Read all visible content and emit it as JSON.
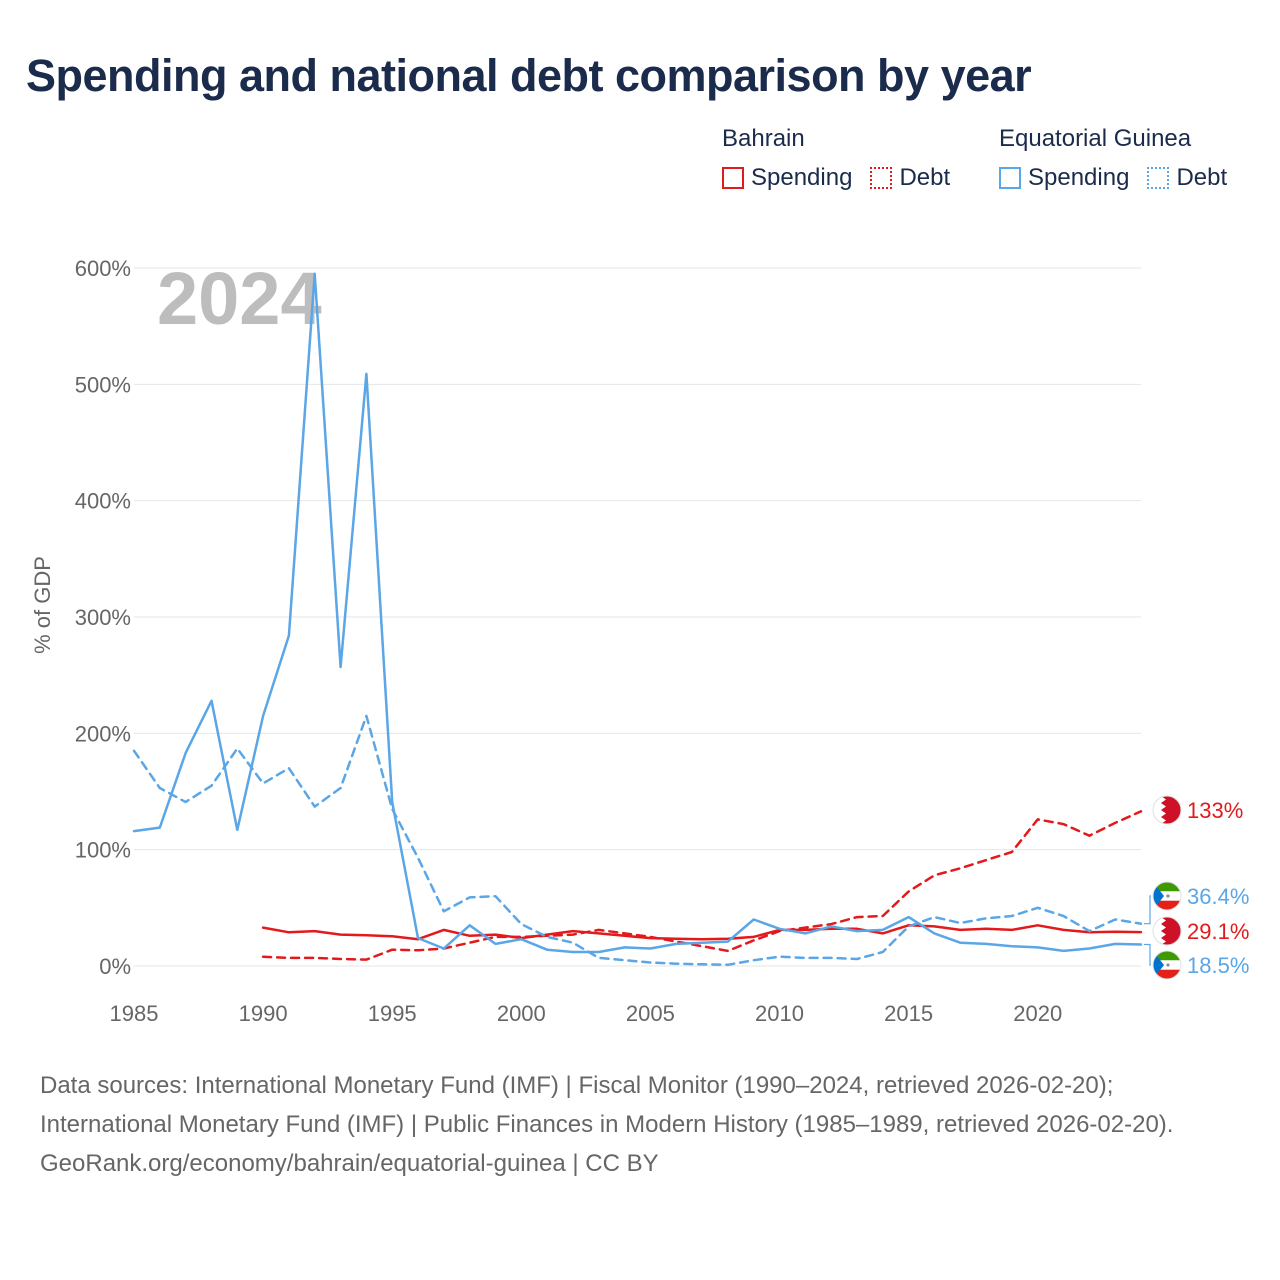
{
  "title": "Spending and national debt comparison by year",
  "year_overlay": "2024",
  "legend": {
    "groups": [
      {
        "name": "Bahrain",
        "color": "#e31a1c",
        "items": [
          {
            "label": "Spending",
            "style": "solid"
          },
          {
            "label": "Debt",
            "style": "dotted"
          }
        ]
      },
      {
        "name": "Equatorial Guinea",
        "color": "#5aa6e6",
        "items": [
          {
            "label": "Spending",
            "style": "solid"
          },
          {
            "label": "Debt",
            "style": "dotted"
          }
        ]
      }
    ]
  },
  "colors": {
    "bahrain": "#e31a1c",
    "equatorial_guinea": "#5aa6e6",
    "grid": "#e6e6e6",
    "text": "#1b2b4b",
    "muted": "#666666"
  },
  "chart_data": {
    "type": "line",
    "title": "Spending and national debt comparison by year",
    "xlabel": "",
    "ylabel": "% of GDP",
    "xlim": [
      1985,
      2024
    ],
    "ylim": [
      0,
      600
    ],
    "x_ticks": [
      1985,
      1990,
      1995,
      2000,
      2005,
      2010,
      2015,
      2020
    ],
    "y_ticks": [
      0,
      100,
      200,
      300,
      400,
      500,
      600
    ],
    "y_tick_labels": [
      "0%",
      "100%",
      "200%",
      "300%",
      "400%",
      "500%",
      "600%"
    ],
    "grid": true,
    "series": [
      {
        "name": "Bahrain Spending",
        "country": "Bahrain",
        "style": "solid",
        "color": "#e31a1c",
        "x": [
          1990,
          1991,
          1992,
          1993,
          1994,
          1995,
          1996,
          1997,
          1998,
          1999,
          2000,
          2001,
          2002,
          2003,
          2004,
          2005,
          2006,
          2007,
          2008,
          2009,
          2010,
          2011,
          2012,
          2013,
          2014,
          2015,
          2016,
          2017,
          2018,
          2019,
          2020,
          2021,
          2022,
          2023,
          2024
        ],
        "values": [
          33,
          29,
          30,
          27,
          26.5,
          25.5,
          23,
          31,
          26,
          27,
          24,
          27,
          30,
          28,
          26,
          24,
          23.5,
          23,
          23.5,
          25,
          31,
          31,
          32,
          32,
          28,
          35,
          34,
          31,
          32,
          31,
          35,
          31,
          29,
          29.5,
          29.1
        ]
      },
      {
        "name": "Bahrain Debt",
        "country": "Bahrain",
        "style": "dashed",
        "color": "#e31a1c",
        "x": [
          1990,
          1991,
          1992,
          1993,
          1994,
          1995,
          1996,
          1997,
          1998,
          1999,
          2000,
          2001,
          2002,
          2003,
          2004,
          2005,
          2006,
          2007,
          2008,
          2009,
          2010,
          2011,
          2012,
          2013,
          2014,
          2015,
          2016,
          2017,
          2018,
          2019,
          2020,
          2021,
          2022,
          2023,
          2024
        ],
        "values": [
          8,
          7,
          7,
          6,
          5.5,
          14,
          13.5,
          15,
          20,
          25,
          25,
          26,
          27,
          31,
          28,
          25,
          21,
          17,
          13,
          22,
          30,
          33,
          36,
          42,
          43,
          64,
          78,
          84,
          91,
          98,
          126,
          122,
          112,
          123,
          133
        ]
      },
      {
        "name": "Equatorial Guinea Spending",
        "country": "Equatorial Guinea",
        "style": "solid",
        "color": "#5aa6e6",
        "x": [
          1985,
          1986,
          1987,
          1988,
          1989,
          1990,
          1991,
          1992,
          1993,
          1994,
          1995,
          1996,
          1997,
          1998,
          1999,
          2000,
          2001,
          2002,
          2003,
          2004,
          2005,
          2006,
          2007,
          2008,
          2009,
          2010,
          2011,
          2012,
          2013,
          2014,
          2015,
          2016,
          2017,
          2018,
          2019,
          2020,
          2021,
          2022,
          2023,
          2024
        ],
        "values": [
          116,
          119,
          183,
          228,
          117,
          215,
          284,
          595,
          257,
          509,
          141,
          24,
          15,
          35,
          19,
          23,
          14,
          12,
          12,
          16,
          15,
          19,
          20,
          21,
          40,
          32,
          28,
          34,
          30,
          31,
          42,
          28,
          20,
          19,
          17,
          16,
          13,
          15,
          19,
          18.5
        ]
      },
      {
        "name": "Equatorial Guinea Debt",
        "country": "Equatorial Guinea",
        "style": "dashed",
        "color": "#5aa6e6",
        "x": [
          1985,
          1986,
          1987,
          1988,
          1989,
          1990,
          1991,
          1992,
          1993,
          1994,
          1995,
          1996,
          1997,
          1998,
          1999,
          2000,
          2001,
          2002,
          2003,
          2004,
          2005,
          2006,
          2007,
          2008,
          2009,
          2010,
          2011,
          2012,
          2013,
          2014,
          2015,
          2016,
          2017,
          2018,
          2019,
          2020,
          2021,
          2022,
          2023,
          2024
        ],
        "values": [
          185,
          153,
          141,
          155,
          187,
          157,
          170,
          137,
          153,
          215,
          135,
          93,
          47,
          59,
          60,
          36,
          25,
          20,
          7,
          5,
          3,
          2,
          1.5,
          1,
          5,
          8,
          7,
          7,
          6,
          12,
          34,
          42,
          37,
          41,
          43,
          50,
          43,
          30,
          40,
          36.4
        ]
      }
    ],
    "end_labels": [
      {
        "series": "Bahrain Debt",
        "label": "133%",
        "color": "#e31a1c",
        "flag": "bahrain"
      },
      {
        "series": "Equatorial Guinea Debt",
        "label": "36.4%",
        "color": "#5aa6e6",
        "flag": "equatorial-guinea"
      },
      {
        "series": "Bahrain Spending",
        "label": "29.1%",
        "color": "#e31a1c",
        "flag": "bahrain"
      },
      {
        "series": "Equatorial Guinea Spending",
        "label": "18.5%",
        "color": "#5aa6e6",
        "flag": "equatorial-guinea"
      }
    ]
  },
  "source": {
    "line1": "Data sources: International Monetary Fund (IMF) | Fiscal Monitor (1990–2024, retrieved 2026-02-20); International Monetary Fund (IMF) | Public Finances in Modern History (1985–1989, retrieved 2026-02-20).",
    "line2": "GeoRank.org/economy/bahrain/equatorial-guinea | CC BY"
  }
}
